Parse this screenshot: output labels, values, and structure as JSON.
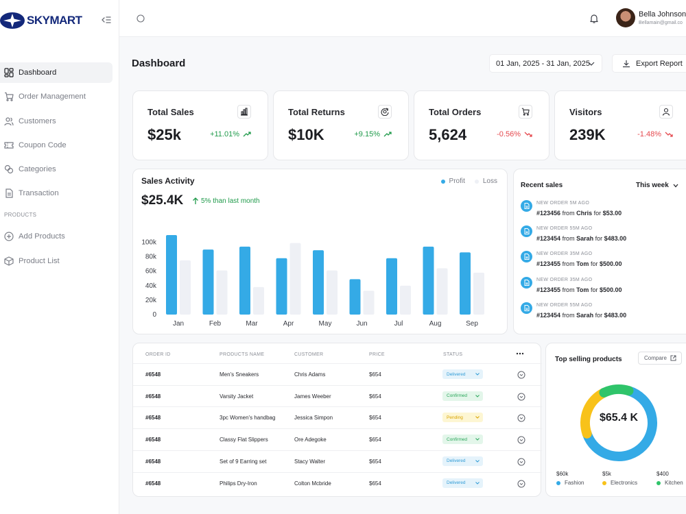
{
  "brand": {
    "name": "SKYMART"
  },
  "sidebar": {
    "items": [
      {
        "label": "Dashboard",
        "icon": "dashboard-icon"
      },
      {
        "label": "Order Management",
        "icon": "cart-icon"
      },
      {
        "label": "Customers",
        "icon": "users-icon"
      },
      {
        "label": "Coupon Code",
        "icon": "ticket-icon"
      },
      {
        "label": "Categories",
        "icon": "categories-icon"
      },
      {
        "label": "Transaction",
        "icon": "document-icon"
      }
    ],
    "section_label": "PRODUCTS",
    "product_items": [
      {
        "label": "Add Products",
        "icon": "plus-circle-icon"
      },
      {
        "label": "Product List",
        "icon": "box-icon"
      }
    ]
  },
  "user": {
    "name": "Bella Johnson",
    "email": "Bellamain@gmail.co"
  },
  "page": {
    "title": "Dashboard",
    "date_range": "01 Jan, 2025 - 31 Jan, 2025",
    "export_label": "Export Report"
  },
  "stats": [
    {
      "title": "Total Sales",
      "value": "$25k",
      "delta": "+11.01%",
      "trend": "up",
      "icon": "bar-chart-icon"
    },
    {
      "title": "Total Returns",
      "value": "$10K",
      "delta": "+9.15%",
      "trend": "up",
      "icon": "return-icon"
    },
    {
      "title": "Total Orders",
      "value": "5,624",
      "delta": "-0.56%",
      "trend": "down",
      "icon": "cart-icon"
    },
    {
      "title": "Visitors",
      "value": "239K",
      "delta": "-1.48%",
      "trend": "down",
      "icon": "user-icon"
    }
  ],
  "sales_activity": {
    "title": "Sales Activity",
    "total": "$25.4K",
    "delta_text": "5% than last month",
    "legend": {
      "profit": "Profit",
      "loss": "Loss"
    }
  },
  "chart_data": {
    "type": "bar",
    "categories": [
      "Jan",
      "Feb",
      "Mar",
      "Apr",
      "May",
      "Jun",
      "Jul",
      "Aug",
      "Sep"
    ],
    "series": [
      {
        "name": "Profit",
        "values": [
          110,
          90,
          94,
          78,
          89,
          49,
          78,
          94,
          86
        ],
        "color": "#34aae6"
      },
      {
        "name": "Loss",
        "values": [
          75,
          61,
          38,
          99,
          61,
          33,
          40,
          64,
          58
        ],
        "color": "#eef0f5"
      }
    ],
    "y_ticks": [
      "0",
      "20k",
      "40k",
      "60k",
      "80k",
      "100k"
    ],
    "ylim": [
      0,
      110
    ],
    "grid": false
  },
  "recent_sales": {
    "title": "Recent sales",
    "filter": "This week",
    "items": [
      {
        "label": "NEW ORDER 5M AGO",
        "order": "#123456",
        "from": "from",
        "name": "Chris",
        "for": "for",
        "amount": "$53.00"
      },
      {
        "label": "NEW ORDER 55M AGO",
        "order": "#123454",
        "from": "from",
        "name": "Sarah",
        "for": "for",
        "amount": "$483.00"
      },
      {
        "label": "NEW ORDER 35M AGO",
        "order": "#123455",
        "from": "from",
        "name": "Tom",
        "for": "for",
        "amount": "$500.00"
      },
      {
        "label": "NEW ORDER 35M AGO",
        "order": "#123455",
        "from": "from",
        "name": "Tom",
        "for": "for",
        "amount": "$500.00"
      },
      {
        "label": "NEW ORDER 55M AGO",
        "order": "#123454",
        "from": "from",
        "name": "Sarah",
        "for": "for",
        "amount": "$483.00"
      }
    ]
  },
  "orders": {
    "headers": [
      "ORDER ID",
      "PRODUCTS NAME",
      "CUSTOMER",
      "PRICE",
      "STATUS"
    ],
    "rows": [
      {
        "id": "#6548",
        "product": "Men's Sneakers",
        "customer": "Chris Adams",
        "price": "$654",
        "status": "Delivered"
      },
      {
        "id": "#6548",
        "product": "Varsity Jacket",
        "customer": "James Weeber",
        "price": "$654",
        "status": "Confirmed"
      },
      {
        "id": "#6548",
        "product": "3pc Women's handbag",
        "customer": "Jessica Simpon",
        "price": "$654",
        "status": "Pending"
      },
      {
        "id": "#6548",
        "product": "Classy Flat Slippers",
        "customer": "Ore Adegoke",
        "price": "$654",
        "status": "Confirmed"
      },
      {
        "id": "#6548",
        "product": "Set of 9 Earring set",
        "customer": "Stacy Walter",
        "price": "$654",
        "status": "Delivered"
      },
      {
        "id": "#6548",
        "product": "Philips Dry-Iron",
        "customer": "Colton Mcbride",
        "price": "$654",
        "status": "Delivered"
      }
    ],
    "status_colors": {
      "Delivered": {
        "bg": "#e5f3fb",
        "fg": "#2f9bd6"
      },
      "Confirmed": {
        "bg": "#e3f6ea",
        "fg": "#2aa65a"
      },
      "Pending": {
        "bg": "#fdf6d3",
        "fg": "#d9a300"
      }
    }
  },
  "top_selling": {
    "title": "Top selling products",
    "compare_label": "Compare",
    "total": "$65.4 K",
    "segments": [
      {
        "name": "Fashion",
        "value": "$60k",
        "color": "#34aae6",
        "share": 0.65
      },
      {
        "name": "Electronics",
        "value": "$5k",
        "color": "#f8c21a",
        "share": 0.23
      },
      {
        "name": "Kitchen",
        "value": "$400",
        "color": "#2fc46a",
        "share": 0.12
      }
    ]
  }
}
